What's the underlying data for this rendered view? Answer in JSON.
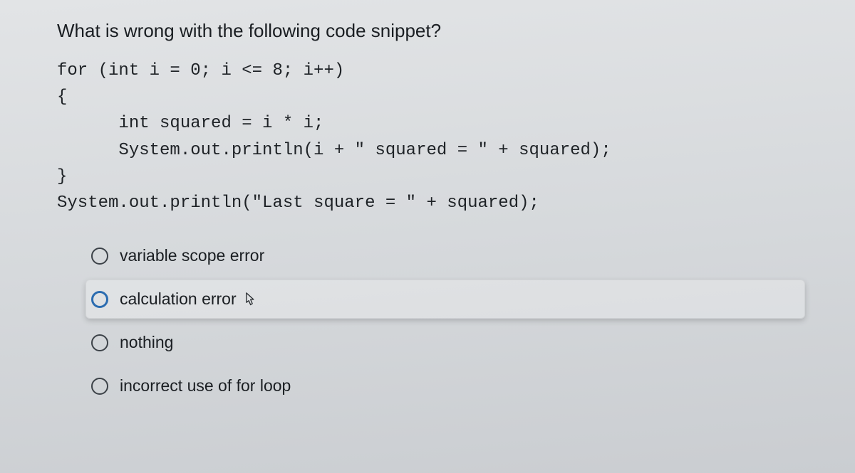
{
  "question": "What is wrong with the following code snippet?",
  "code_lines": [
    "for (int i = 0; i <= 8; i++)",
    "{",
    "      int squared = i * i;",
    "      System.out.println(i + \" squared = \" + squared);",
    "}",
    "System.out.println(\"Last square = \" + squared);"
  ],
  "options": [
    {
      "label": "variable scope error",
      "hover": false
    },
    {
      "label": "calculation error",
      "hover": true
    },
    {
      "label": "nothing",
      "hover": false
    },
    {
      "label": "incorrect use of for loop",
      "hover": false
    }
  ],
  "colors": {
    "text": "#1a1e22",
    "radio_border": "#3c4248",
    "radio_border_hover": "#2b6cb0",
    "hover_bg": "rgba(255,255,255,0.25)"
  },
  "font_sizes": {
    "question": 26,
    "code": 24,
    "option": 23
  }
}
